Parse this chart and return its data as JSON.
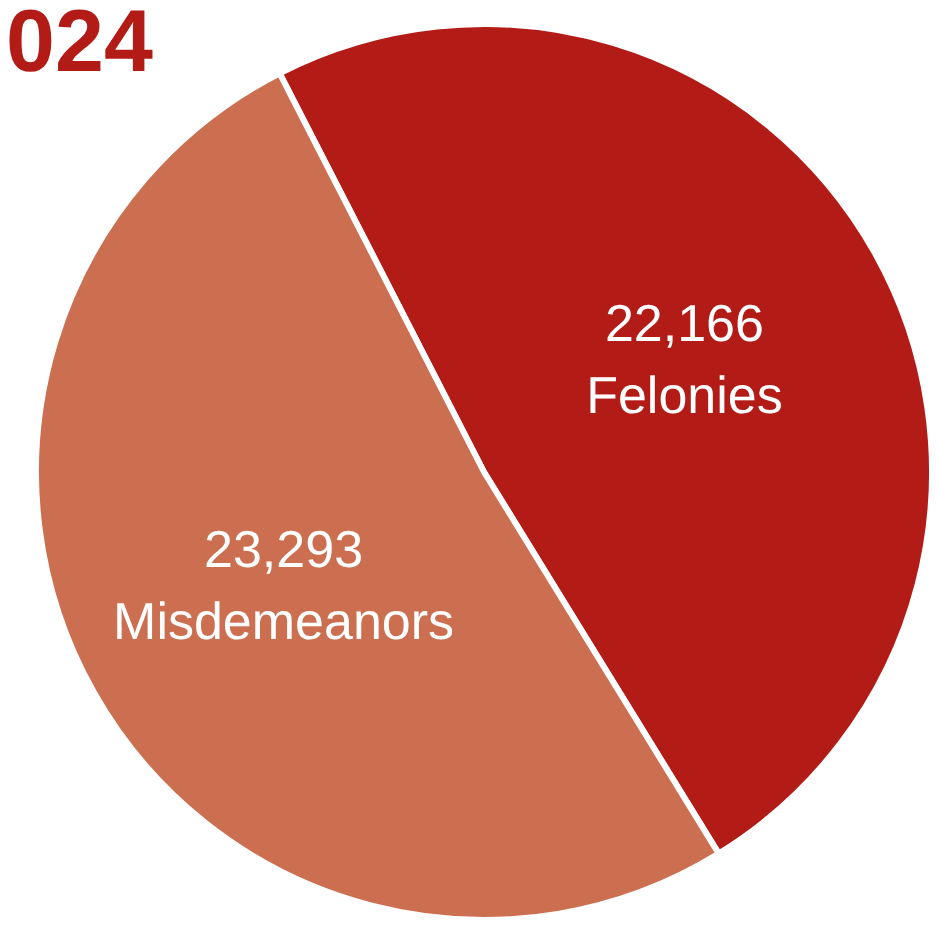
{
  "chart_data": {
    "type": "pie",
    "title": "024",
    "categories": [
      "Felonies",
      "Misdemeanors"
    ],
    "values": [
      22166,
      23293
    ],
    "colors": [
      "#b31b17",
      "#cc6e50"
    ],
    "value_labels": [
      "22,166",
      "23,293"
    ],
    "legend": false
  }
}
